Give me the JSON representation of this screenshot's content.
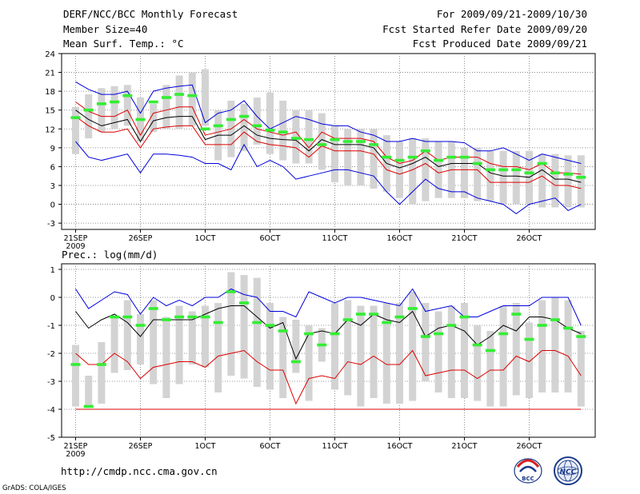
{
  "header": {
    "title": "DERF/NCC/BCC Monthly Forecast",
    "member_size": "Member Size=40",
    "variable": "Mean Surf. Temp.: °C",
    "forecast_period": "For 2009/09/21-2009/10/30",
    "start_date": "Fcst Started Refer Date 2009/09/20",
    "produced_date": "Fcst Produced Date 2009/09/21"
  },
  "footer": {
    "url": "http://cmdp.ncc.cma.gov.cn",
    "credit": "GrADS: COLA/IGES",
    "logo_bcc_text": "BCC",
    "logo_ncc_text": "NCC"
  },
  "colors": {
    "box": "#d3d3d3",
    "median": "#000000",
    "inner": "#dd0000",
    "outer": "#0000dd",
    "marker": "#33ee33"
  },
  "chart_data": [
    {
      "type": "box-ensemble",
      "title": "Mean Surf. Temp.: °C",
      "ylim": [
        -4,
        24
      ],
      "yticks": [
        -3,
        0,
        3,
        6,
        9,
        12,
        15,
        18,
        21,
        24
      ],
      "xtick_labels": [
        "21SEP",
        "26SEP",
        "1OCT",
        "6OCT",
        "11OCT",
        "16OCT",
        "21OCT",
        "26OCT"
      ],
      "year_label": "2009",
      "days": 40,
      "series": [
        {
          "name": "box_high",
          "values": [
            15.5,
            17.5,
            18.5,
            18.8,
            19.0,
            17.0,
            16.0,
            19.0,
            20.5,
            21.0,
            21.5,
            15.0,
            16.5,
            16.0,
            17.0,
            17.8,
            16.5,
            15.0,
            15.0,
            14.5,
            12.5,
            12.0,
            12.0,
            12.0,
            11.0,
            10.0,
            10.5,
            10.5,
            10.0,
            10.0,
            9.0,
            9.0,
            8.5,
            8.5,
            8.5,
            8.5,
            8.0,
            8.0,
            7.8,
            7.8
          ]
        },
        {
          "name": "box_low",
          "values": [
            8.0,
            10.5,
            11.5,
            12.0,
            12.5,
            10.0,
            11.5,
            12.0,
            12.0,
            12.5,
            12.5,
            7.0,
            7.5,
            8.5,
            9.5,
            8.0,
            7.0,
            6.5,
            6.5,
            5.5,
            3.5,
            3.0,
            3.0,
            2.5,
            2.0,
            1.0,
            0.0,
            0.5,
            1.0,
            1.0,
            1.0,
            0.5,
            0.5,
            0.0,
            0.0,
            0.0,
            -0.5,
            -0.5,
            -0.5,
            -0.5
          ]
        },
        {
          "name": "outer_high",
          "values": [
            19.5,
            18.3,
            17.5,
            17.5,
            18.0,
            14.5,
            18.0,
            18.5,
            18.8,
            19.0,
            13.0,
            14.5,
            15.0,
            16.5,
            14.0,
            12.0,
            13.0,
            14.0,
            13.5,
            12.8,
            12.5,
            12.5,
            11.5,
            11.0,
            10.0,
            10.0,
            10.5,
            10.0,
            10.0,
            10.0,
            9.8,
            8.5,
            8.5,
            9.0,
            8.0,
            7.0,
            8.0,
            7.5,
            7.0,
            6.5
          ]
        },
        {
          "name": "inner_high",
          "values": [
            16.3,
            14.8,
            14.0,
            14.0,
            15.0,
            11.0,
            14.5,
            15.0,
            15.5,
            15.5,
            11.0,
            11.5,
            12.0,
            13.5,
            12.0,
            11.5,
            11.0,
            11.5,
            9.0,
            11.5,
            10.5,
            10.5,
            10.5,
            10.0,
            7.5,
            6.5,
            7.0,
            8.5,
            7.0,
            7.5,
            7.5,
            7.5,
            6.5,
            6.0,
            6.0,
            5.5,
            6.5,
            5.0,
            5.0,
            4.8
          ]
        },
        {
          "name": "median",
          "values": [
            15.0,
            13.5,
            12.5,
            13.0,
            13.5,
            10.0,
            13.3,
            13.8,
            14.0,
            14.0,
            10.3,
            11.0,
            11.0,
            12.5,
            11.0,
            10.5,
            10.3,
            10.2,
            8.5,
            10.3,
            9.5,
            9.5,
            9.5,
            9.0,
            6.5,
            5.8,
            6.5,
            7.5,
            6.0,
            6.5,
            6.5,
            6.5,
            5.0,
            4.5,
            4.5,
            4.3,
            5.5,
            4.0,
            4.0,
            3.5
          ]
        },
        {
          "name": "inner_low",
          "values": [
            14.0,
            12.5,
            11.5,
            11.5,
            12.0,
            9.0,
            12.0,
            12.3,
            12.5,
            12.5,
            9.5,
            9.5,
            9.5,
            11.5,
            10.0,
            9.5,
            9.3,
            9.0,
            7.5,
            9.3,
            8.5,
            8.5,
            8.5,
            8.0,
            5.5,
            4.8,
            5.5,
            6.5,
            5.0,
            5.5,
            5.5,
            5.5,
            3.5,
            3.5,
            3.5,
            3.5,
            4.5,
            3.0,
            3.0,
            2.5
          ]
        },
        {
          "name": "outer_low",
          "values": [
            10.0,
            7.5,
            7.0,
            7.5,
            8.0,
            5.0,
            8.0,
            8.0,
            7.8,
            7.5,
            6.5,
            6.5,
            5.5,
            9.5,
            6.0,
            7.0,
            6.0,
            4.0,
            4.5,
            5.0,
            5.5,
            5.5,
            5.0,
            4.5,
            2.0,
            0.0,
            2.0,
            4.0,
            2.5,
            2.0,
            2.0,
            1.0,
            0.5,
            0.0,
            -1.5,
            0.0,
            0.5,
            1.0,
            -1.0,
            0.0
          ]
        },
        {
          "name": "marker",
          "values": [
            13.8,
            15.0,
            16.0,
            16.3,
            17.3,
            13.5,
            16.3,
            17.0,
            17.5,
            17.3,
            12.0,
            12.5,
            13.5,
            14.0,
            12.5,
            11.8,
            11.5,
            10.5,
            10.3,
            9.5,
            10.3,
            10.0,
            10.0,
            9.5,
            7.5,
            7.0,
            7.5,
            8.5,
            7.0,
            7.5,
            7.5,
            6.5,
            5.5,
            5.5,
            5.5,
            5.0,
            6.5,
            5.0,
            4.8,
            4.3
          ]
        }
      ]
    },
    {
      "type": "box-ensemble",
      "title": "Prec.: log(mm/d)",
      "ylim": [
        -5,
        1.2
      ],
      "yticks": [
        -5,
        -4,
        -3,
        -2,
        -1,
        0,
        1
      ],
      "xtick_labels": [
        "21SEP",
        "26SEP",
        "1OCT",
        "6OCT",
        "11OCT",
        "16OCT",
        "21OCT",
        "26OCT"
      ],
      "year_label": "2009",
      "days": 40,
      "series": [
        {
          "name": "box_high",
          "values": [
            -1.7,
            -2.8,
            -1.6,
            -0.7,
            -0.1,
            -0.6,
            -0.1,
            -0.7,
            -0.3,
            -0.5,
            -0.3,
            -0.2,
            0.9,
            0.8,
            0.7,
            -0.2,
            -0.7,
            -0.8,
            -1.0,
            -1.1,
            -0.2,
            -0.1,
            -0.3,
            -0.3,
            -0.2,
            -0.2,
            0.2,
            -0.2,
            -0.5,
            -0.3,
            -0.2,
            -1.0,
            -1.2,
            -0.3,
            -0.2,
            -0.9,
            -0.1,
            0.0,
            -0.1,
            -1.2
          ]
        },
        {
          "name": "box_low",
          "values": [
            -3.9,
            -3.9,
            -3.8,
            -2.7,
            -2.6,
            -2.4,
            -3.1,
            -3.6,
            -3.1,
            -2.4,
            -2.5,
            -3.4,
            -2.8,
            -2.9,
            -3.2,
            -3.3,
            -3.6,
            -2.7,
            -3.7,
            -2.3,
            -3.3,
            -3.5,
            -3.9,
            -3.6,
            -3.8,
            -3.8,
            -3.7,
            -3.0,
            -3.4,
            -3.6,
            -3.6,
            -3.7,
            -3.9,
            -3.9,
            -3.5,
            -3.6,
            -3.4,
            -3.4,
            -3.4,
            -3.9
          ]
        },
        {
          "name": "outer_high",
          "values": [
            0.3,
            -0.4,
            -0.1,
            0.2,
            0.1,
            -0.6,
            0.0,
            -0.3,
            -0.1,
            -0.3,
            0.0,
            0.0,
            0.3,
            0.1,
            0.0,
            -0.5,
            -0.5,
            -0.7,
            0.2,
            0.0,
            -0.2,
            0.0,
            0.0,
            -0.1,
            -0.2,
            -0.3,
            0.3,
            -0.5,
            -0.4,
            -0.3,
            -0.7,
            -0.7,
            -0.5,
            -0.3,
            -0.3,
            -0.3,
            0.0,
            0.0,
            0.0,
            -1.0
          ]
        },
        {
          "name": "median",
          "values": [
            -0.5,
            -1.1,
            -0.8,
            -0.6,
            -0.9,
            -1.4,
            -0.8,
            -0.8,
            -0.8,
            -0.8,
            -0.6,
            -0.4,
            -0.3,
            -0.3,
            -0.7,
            -1.1,
            -0.9,
            -2.2,
            -1.3,
            -1.2,
            -1.3,
            -0.8,
            -1.0,
            -0.6,
            -0.8,
            -0.9,
            -0.5,
            -1.4,
            -1.1,
            -1.0,
            -1.2,
            -1.7,
            -1.4,
            -1.0,
            -1.2,
            -0.7,
            -0.7,
            -0.8,
            -1.1,
            -1.3
          ]
        },
        {
          "name": "inner_low",
          "values": [
            -2.0,
            -2.4,
            -2.4,
            -2.0,
            -2.3,
            -2.9,
            -2.5,
            -2.4,
            -2.3,
            -2.3,
            -2.5,
            -2.1,
            -2.0,
            -1.9,
            -2.3,
            -2.6,
            -2.6,
            -3.8,
            -2.9,
            -2.8,
            -2.9,
            -2.3,
            -2.4,
            -2.1,
            -2.4,
            -2.4,
            -1.9,
            -2.8,
            -2.7,
            -2.6,
            -2.6,
            -2.9,
            -2.6,
            -2.6,
            -2.1,
            -2.3,
            -1.9,
            -1.9,
            -2.1,
            -2.8
          ]
        },
        {
          "name": "floor",
          "values": [
            -4,
            -4,
            -4,
            -4,
            -4,
            -4,
            -4,
            -4,
            -4,
            -4,
            -4,
            -4,
            -4,
            -4,
            -4,
            -4,
            -4,
            -4,
            -4,
            -4,
            -4,
            -4,
            -4,
            -4,
            -4,
            -4,
            -4,
            -4,
            -4,
            -4,
            -4,
            -4,
            -4,
            -4,
            -4,
            -4,
            -4,
            -4,
            -4,
            -4
          ]
        },
        {
          "name": "marker",
          "values": [
            -2.4,
            -3.9,
            -2.4,
            -0.7,
            -0.7,
            -1.0,
            -0.4,
            -0.8,
            -0.7,
            -0.7,
            -0.7,
            -0.9,
            0.2,
            -0.2,
            -0.9,
            -1.0,
            -1.2,
            -2.3,
            -1.3,
            -1.7,
            -1.3,
            -0.8,
            -0.6,
            -0.6,
            -0.9,
            -0.7,
            -0.4,
            -1.4,
            -1.3,
            -1.0,
            -0.7,
            -1.7,
            -1.9,
            -1.3,
            -0.6,
            -1.5,
            -1.0,
            -0.8,
            -1.1,
            -1.4
          ]
        }
      ]
    }
  ]
}
